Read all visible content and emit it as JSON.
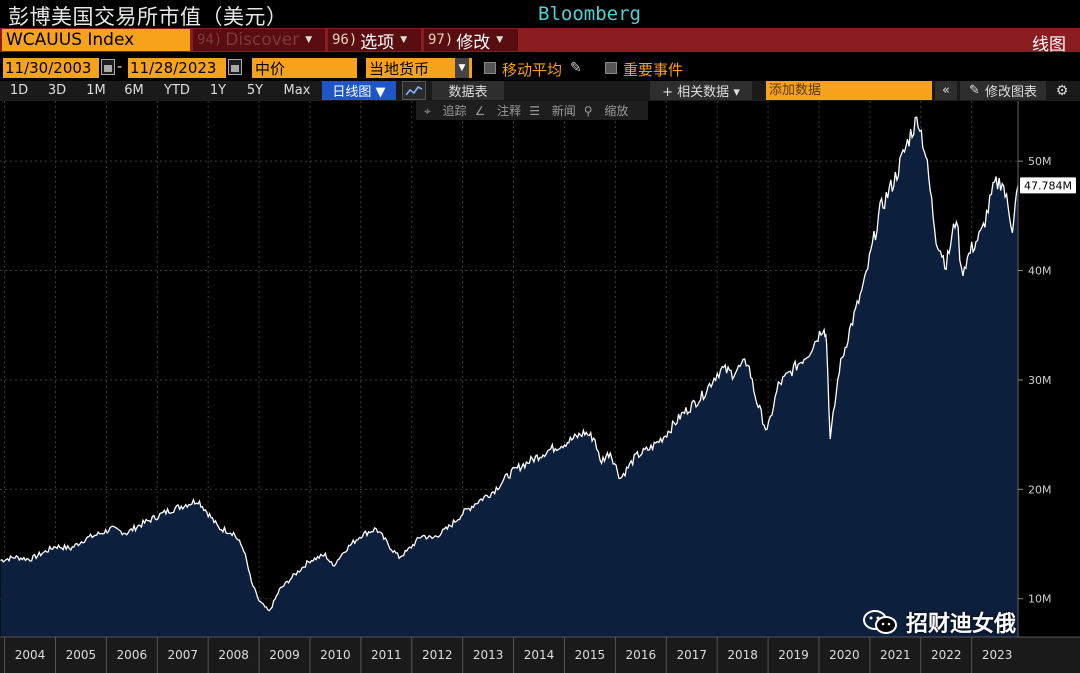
{
  "header": {
    "title": "彭博美国交易所市值（美元）",
    "brand": "Bloomberg"
  },
  "command_bar": {
    "ticker": "WCAUUS Index",
    "discover": {
      "num": "94)",
      "label": "Discover"
    },
    "options": {
      "num": "96)",
      "label": "选项"
    },
    "modify": {
      "num": "97)",
      "label": "修改"
    },
    "chart_type": "线图"
  },
  "controls": {
    "start_date": "11/30/2003",
    "date_separator": "-",
    "end_date": "11/28/2023",
    "price_field": "中价",
    "currency": "当地货币",
    "moving_average_label": "移动平均",
    "key_events_label": "重要事件"
  },
  "toolbar": {
    "ranges": [
      "1D",
      "3D",
      "1M",
      "6M",
      "YTD",
      "1Y",
      "5Y",
      "Max"
    ],
    "frequency": "日线图 ▼",
    "table_label": "数据表",
    "related_label": "+ 相关数据 ▾",
    "add_data_placeholder": "添加数据",
    "collapse_label": "«",
    "edit_chart_label": "修改图表",
    "gear": "⚙"
  },
  "annotation_toolbar": {
    "track": "追踪",
    "annotate": "注释",
    "news": "新闻",
    "zoom": "缩放"
  },
  "colors": {
    "area_fill": "#0c1f3c",
    "line": "#ffffff",
    "accent_orange": "#f7a21b",
    "command_red": "#8b1c1f",
    "brand_cyan": "#4fd2d6"
  },
  "chart_data": {
    "type": "area",
    "x_ticks": [
      "2004",
      "2005",
      "2006",
      "2007",
      "2008",
      "2009",
      "2010",
      "2011",
      "2012",
      "2013",
      "2014",
      "2015",
      "2016",
      "2017",
      "2018",
      "2019",
      "2020",
      "2021",
      "2022",
      "2023"
    ],
    "y_ticks": [
      "10M",
      "20M",
      "30M",
      "40M",
      "50M"
    ],
    "y_tick_values": [
      10,
      20,
      30,
      40,
      50
    ],
    "ylim": [
      6.5,
      55.5
    ],
    "xlim": [
      2003.91,
      2023.91
    ],
    "last_value_label": "47.784M",
    "last_value": 47.784,
    "series": [
      {
        "x": [
          2003.92,
          2004.2,
          2004.5,
          2004.8,
          2005.0,
          2005.3,
          2005.6,
          2005.9,
          2006.1,
          2006.4,
          2006.6,
          2006.9,
          2007.2,
          2007.5,
          2007.8,
          2008.0,
          2008.2,
          2008.5,
          2008.7,
          2008.85,
          2009.0,
          2009.2,
          2009.4,
          2009.7,
          2010.0,
          2010.3,
          2010.45,
          2010.7,
          2011.0,
          2011.3,
          2011.6,
          2011.75,
          2011.9,
          2012.2,
          2012.4,
          2012.7,
          2013.0,
          2013.3,
          2013.6,
          2013.9,
          2014.1,
          2014.4,
          2014.7,
          2015.0,
          2015.4,
          2015.6,
          2015.7,
          2015.9,
          2016.1,
          2016.4,
          2016.7,
          2016.95,
          2017.3,
          2017.7,
          2018.0,
          2018.1,
          2018.3,
          2018.6,
          2018.75,
          2018.98,
          2019.2,
          2019.5,
          2019.8,
          2020.1,
          2020.15,
          2020.22,
          2020.4,
          2020.6,
          2020.9,
          2021.2,
          2021.5,
          2021.8,
          2021.95,
          2022.1,
          2022.3,
          2022.5,
          2022.7,
          2022.8,
          2023.0,
          2023.2,
          2023.45,
          2023.6,
          2023.8,
          2023.91
        ],
        "y": [
          13.5,
          13.8,
          13.6,
          14.3,
          14.8,
          14.6,
          15.5,
          16.0,
          16.4,
          16.0,
          16.6,
          17.3,
          18.0,
          18.5,
          19.0,
          17.8,
          16.5,
          16.0,
          14.5,
          11.5,
          9.8,
          8.8,
          10.8,
          12.2,
          13.5,
          14.0,
          13.0,
          14.5,
          15.8,
          16.4,
          14.6,
          13.8,
          14.3,
          15.8,
          15.5,
          16.4,
          17.8,
          18.9,
          19.8,
          21.3,
          22.0,
          22.8,
          23.6,
          24.2,
          25.2,
          24.6,
          22.5,
          23.4,
          21.0,
          23.0,
          23.8,
          24.8,
          26.8,
          28.5,
          30.6,
          31.0,
          30.6,
          31.7,
          28.5,
          25.2,
          29.5,
          31.0,
          32.5,
          35.0,
          33.5,
          24.5,
          31.0,
          34.5,
          39.0,
          45.5,
          48.5,
          52.5,
          54.0,
          50.5,
          43.0,
          40.5,
          45.0,
          39.8,
          42.0,
          43.5,
          47.8,
          48.2,
          44.0,
          47.8
        ]
      }
    ]
  },
  "watermark": "招财迪女俄"
}
